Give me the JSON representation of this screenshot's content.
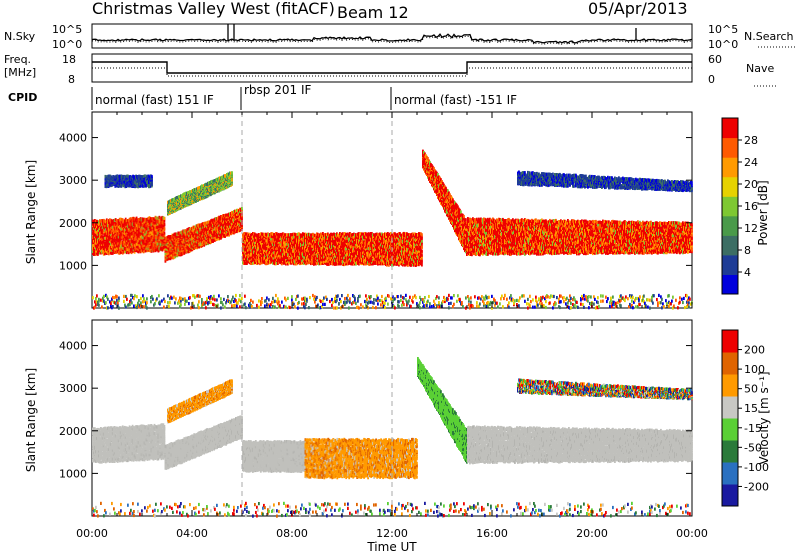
{
  "header": {
    "station": "Christmas Valley West (fitACF)",
    "beam": "Beam 12",
    "date": "05/Apr/2013"
  },
  "noise_panel": {
    "left_label": "N.Sky",
    "right_label": "N.Search",
    "left_ticks": [
      "10^5",
      "10^0"
    ],
    "right_ticks": [
      "10^5",
      "10^0"
    ]
  },
  "freq_panel": {
    "left_label_1": "Freq.",
    "left_label_2": "[MHz]",
    "right_label": "Nave",
    "left_ticks": [
      "18",
      "8"
    ],
    "right_ticks": [
      "60",
      "0"
    ]
  },
  "cpid": {
    "label": "CPID",
    "segments": [
      {
        "text": "normal (fast) 151 IF",
        "start_h": 0
      },
      {
        "text": "rbsp 201 IF",
        "start_h": 6
      },
      {
        "text": "normal (fast) -151 IF",
        "start_h": 12
      }
    ]
  },
  "x_axis": {
    "label": "Time UT",
    "ticks": [
      "00:00",
      "04:00",
      "08:00",
      "12:00",
      "16:00",
      "20:00",
      "00:00"
    ]
  },
  "power_colorbar": {
    "label": "Power [dB]",
    "ticks": [
      "28",
      "24",
      "20",
      "16",
      "12",
      "8",
      "4"
    ]
  },
  "velocity_colorbar": {
    "label": "Velocity [m s⁻¹]",
    "ticks": [
      "200",
      "100",
      "50",
      "15",
      "-15",
      "-50",
      "-100",
      "-200"
    ]
  },
  "chart_data": [
    {
      "type": "heatmap",
      "ylabel": "Slant Range [km]",
      "xlabel": "",
      "xlim": [
        0,
        24
      ],
      "ylim": [
        0,
        4600
      ],
      "yticks": [
        1000,
        2000,
        3000,
        4000
      ],
      "colorbar": "Power [dB]",
      "scatter_bands": [
        {
          "t0": 0.0,
          "t1": 2.9,
          "r_low0": 1250,
          "r_low1": 1350,
          "r_high0": 2050,
          "r_high1": 2150,
          "level": "high"
        },
        {
          "t0": 2.9,
          "t1": 6.0,
          "r_low0": 1100,
          "r_low1": 1850,
          "r_high0": 1650,
          "r_high1": 2350,
          "level": "high"
        },
        {
          "t0": 3.0,
          "t1": 5.6,
          "r_low0": 2200,
          "r_low1": 2900,
          "r_high0": 2500,
          "r_high1": 3200,
          "level": "mid"
        },
        {
          "t0": 0.5,
          "t1": 2.4,
          "r_low0": 2850,
          "r_low1": 2850,
          "r_high0": 3100,
          "r_high1": 3100,
          "level": "low"
        },
        {
          "t0": 6.0,
          "t1": 13.2,
          "r_low0": 1050,
          "r_low1": 1000,
          "r_high0": 1750,
          "r_high1": 1750,
          "level": "high"
        },
        {
          "t0": 13.2,
          "t1": 15.0,
          "r_low0": 3300,
          "r_low1": 1200,
          "r_high0": 3700,
          "r_high1": 2000,
          "level": "high"
        },
        {
          "t0": 15.0,
          "t1": 24.0,
          "r_low0": 1250,
          "r_low1": 1300,
          "r_high0": 2100,
          "r_high1": 2000,
          "level": "high"
        },
        {
          "t0": 17.0,
          "t1": 24.0,
          "r_low0": 2900,
          "r_low1": 2750,
          "r_high0": 3200,
          "r_high1": 2950,
          "level": "low"
        },
        {
          "t0": 0.0,
          "t1": 24.0,
          "r_low0": 0,
          "r_low1": 0,
          "r_high0": 300,
          "r_high1": 300,
          "level": "noise"
        }
      ]
    },
    {
      "type": "heatmap",
      "ylabel": "Slant Range [km]",
      "xlabel": "Time UT",
      "xlim": [
        0,
        24
      ],
      "ylim": [
        0,
        4600
      ],
      "yticks": [
        1000,
        2000,
        3000,
        4000
      ],
      "colorbar": "Velocity [m s⁻¹]",
      "scatter_bands": [
        {
          "t0": 0.0,
          "t1": 2.9,
          "r_low0": 1250,
          "r_low1": 1350,
          "r_high0": 2050,
          "r_high1": 2150,
          "level": "ground"
        },
        {
          "t0": 2.9,
          "t1": 6.0,
          "r_low0": 1100,
          "r_low1": 1850,
          "r_high0": 1650,
          "r_high1": 2350,
          "level": "ground"
        },
        {
          "t0": 3.0,
          "t1": 5.6,
          "r_low0": 2200,
          "r_low1": 2900,
          "r_high0": 2500,
          "r_high1": 3200,
          "level": "away"
        },
        {
          "t0": 6.0,
          "t1": 8.5,
          "r_low0": 1050,
          "r_low1": 1050,
          "r_high0": 1750,
          "r_high1": 1750,
          "level": "ground"
        },
        {
          "t0": 8.5,
          "t1": 13.0,
          "r_low0": 900,
          "r_low1": 900,
          "r_high0": 1800,
          "r_high1": 1800,
          "level": "away"
        },
        {
          "t0": 13.0,
          "t1": 15.0,
          "r_low0": 3300,
          "r_low1": 1200,
          "r_high0": 3700,
          "r_high1": 2000,
          "level": "toward"
        },
        {
          "t0": 15.0,
          "t1": 24.0,
          "r_low0": 1250,
          "r_low1": 1300,
          "r_high0": 2100,
          "r_high1": 2000,
          "level": "ground"
        },
        {
          "t0": 17.0,
          "t1": 24.0,
          "r_low0": 2900,
          "r_low1": 2750,
          "r_high0": 3200,
          "r_high1": 2950,
          "level": "mixed"
        },
        {
          "t0": 0.0,
          "t1": 24.0,
          "r_low0": 0,
          "r_low1": 0,
          "r_high0": 300,
          "r_high1": 300,
          "level": "mixed"
        }
      ]
    }
  ],
  "colors": {
    "power_scale": [
      "#0000dd",
      "#1e3c96",
      "#3c6e64",
      "#4a9a4a",
      "#7ec832",
      "#e6d200",
      "#ff9a00",
      "#ff5a00",
      "#ee0000"
    ],
    "velocity_scale": [
      "#1a1aa0",
      "#2a70c0",
      "#2a7a3a",
      "#5ad035",
      "#c8c8c4",
      "#ff9a00",
      "#e06400",
      "#ee0000"
    ],
    "ground_scatter": "#c0c0bc"
  }
}
